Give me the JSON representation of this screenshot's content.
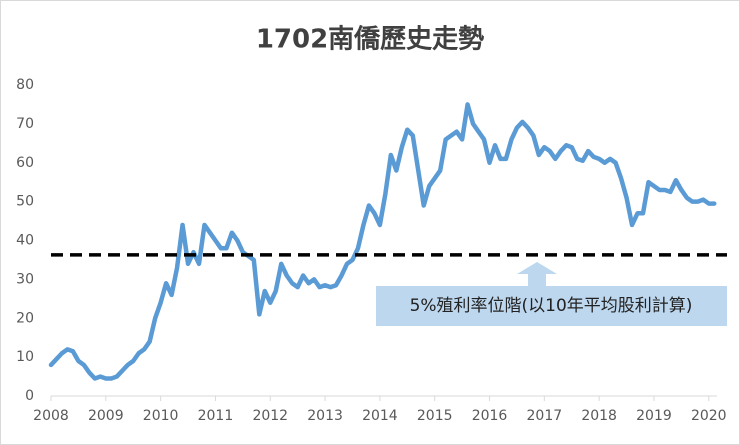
{
  "chart_data": {
    "type": "line",
    "title": "1702南僑歷史走勢",
    "x": [
      2008.0,
      2008.1,
      2008.2,
      2008.3,
      2008.4,
      2008.5,
      2008.6,
      2008.7,
      2008.8,
      2008.9,
      2009.0,
      2009.1,
      2009.2,
      2009.3,
      2009.4,
      2009.5,
      2009.6,
      2009.7,
      2009.8,
      2009.9,
      2010.0,
      2010.1,
      2010.2,
      2010.3,
      2010.4,
      2010.5,
      2010.6,
      2010.7,
      2010.8,
      2010.9,
      2011.0,
      2011.1,
      2011.2,
      2011.3,
      2011.4,
      2011.5,
      2011.6,
      2011.7,
      2011.8,
      2011.9,
      2012.0,
      2012.1,
      2012.2,
      2012.3,
      2012.4,
      2012.5,
      2012.6,
      2012.7,
      2012.8,
      2012.9,
      2013.0,
      2013.1,
      2013.2,
      2013.3,
      2013.4,
      2013.5,
      2013.6,
      2013.7,
      2013.8,
      2013.9,
      2014.0,
      2014.1,
      2014.2,
      2014.3,
      2014.4,
      2014.5,
      2014.6,
      2014.7,
      2014.8,
      2014.9,
      2015.0,
      2015.1,
      2015.2,
      2015.3,
      2015.4,
      2015.5,
      2015.6,
      2015.7,
      2015.8,
      2015.9,
      2016.0,
      2016.1,
      2016.2,
      2016.3,
      2016.4,
      2016.5,
      2016.6,
      2016.7,
      2016.8,
      2016.9,
      2017.0,
      2017.1,
      2017.2,
      2017.3,
      2017.4,
      2017.5,
      2017.6,
      2017.7,
      2017.8,
      2017.9,
      2018.0,
      2018.1,
      2018.2,
      2018.3,
      2018.4,
      2018.5,
      2018.6,
      2018.7,
      2018.8,
      2018.9,
      2019.0,
      2019.1,
      2019.2,
      2019.3,
      2019.4,
      2019.5,
      2019.6,
      2019.7,
      2019.8,
      2019.9,
      2020.0,
      2020.1
    ],
    "series": [
      {
        "color": "#5b9bd5",
        "values": [
          8,
          9.5,
          11,
          12,
          11.5,
          9,
          8,
          6,
          4.5,
          5,
          4.5,
          4.5,
          5,
          6.5,
          8,
          9,
          11,
          12,
          14,
          20,
          24,
          29,
          26,
          33,
          44,
          34,
          37,
          34,
          44,
          42,
          40,
          38,
          38,
          42,
          40,
          37,
          36,
          35,
          21,
          27,
          24,
          27,
          34,
          31,
          29,
          28,
          31,
          29,
          30,
          28,
          28.5,
          28,
          28.5,
          31,
          34,
          35,
          38,
          44,
          49,
          47,
          44,
          52,
          62,
          58,
          64,
          68.5,
          67,
          58,
          49,
          54,
          56,
          58,
          66,
          67,
          68,
          66,
          75,
          70,
          68,
          66,
          60,
          64.5,
          61,
          61,
          66,
          69,
          70.5,
          69,
          67,
          62,
          64,
          63,
          61,
          63,
          64.5,
          64,
          61,
          60.5,
          63,
          61.5,
          61,
          60,
          61,
          60,
          56,
          51,
          44,
          47,
          47,
          55,
          54,
          53,
          53,
          52.5,
          55.5,
          53,
          51,
          50,
          50,
          50.5,
          49.5,
          49.5
        ]
      }
    ],
    "reference_line": {
      "value": 36.3,
      "color": "#000000",
      "style": "dashed"
    },
    "annotation": "5%殖利率位階(以10年平均股利計算)",
    "xlim": [
      2008,
      2020.15
    ],
    "xticks": [
      2008,
      2009,
      2010,
      2011,
      2012,
      2013,
      2014,
      2015,
      2016,
      2017,
      2018,
      2019,
      2020
    ],
    "ylim": [
      0,
      80
    ],
    "yticks": [
      0,
      10,
      20,
      30,
      40,
      50,
      60,
      70,
      80
    ],
    "grid": false
  }
}
